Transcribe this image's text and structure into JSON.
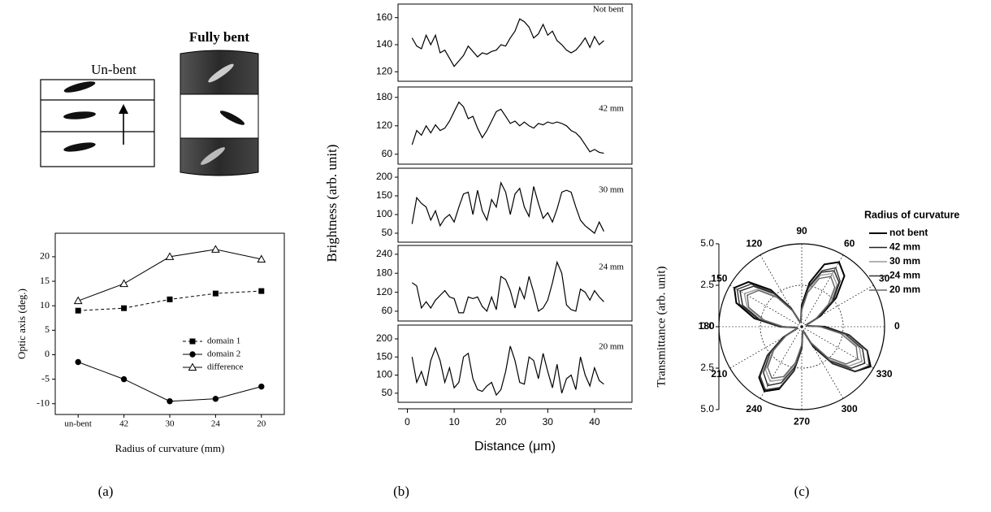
{
  "panels": [
    "(a)",
    "(b)",
    "(c)"
  ],
  "diagram": {
    "unbent_label": "Un-bent",
    "bent_label": "Fully bent"
  },
  "chart_data": [
    {
      "type": "line",
      "xlabel": "Radius of curvature (mm)",
      "ylabel": "Optic axis (deg.)",
      "categories": [
        "un-bent",
        "42",
        "30",
        "24",
        "20"
      ],
      "ylim": [
        -12.2,
        24.8
      ],
      "yticks": [
        -10,
        -5,
        0,
        5,
        10,
        15,
        20
      ],
      "legend": "lower right",
      "series": [
        {
          "name": "domain 1",
          "color": "#000000",
          "marker": "square",
          "dash": true,
          "values": [
            9,
            9.5,
            11.3,
            12.5,
            13
          ]
        },
        {
          "name": "domain 2",
          "color": "#000000",
          "marker": "circle",
          "dash": false,
          "values": [
            -1.5,
            -5,
            -9.5,
            -9,
            -6.5
          ]
        },
        {
          "name": "difference",
          "color": "#000000",
          "marker": "triangle",
          "dash": false,
          "values": [
            11,
            14.5,
            20,
            21.5,
            19.5
          ]
        }
      ]
    },
    {
      "type": "line",
      "annotation": "Not bent",
      "color": "#000000",
      "xlim": [
        -2,
        48
      ],
      "ylim": [
        113,
        170
      ],
      "yticks": [
        120,
        140,
        160
      ],
      "x": [
        1,
        2,
        3,
        4,
        5,
        6,
        7,
        8,
        9,
        10,
        11,
        12,
        13,
        14,
        15,
        16,
        17,
        18,
        19,
        20,
        21,
        22,
        23,
        24,
        25,
        26,
        27,
        28,
        29,
        30,
        31,
        32,
        33,
        34,
        35,
        36,
        37,
        38,
        39,
        40,
        41,
        42
      ],
      "values": [
        145,
        139,
        137,
        147,
        140,
        147,
        134,
        136,
        130,
        124,
        128,
        132,
        139,
        135,
        131,
        134,
        133,
        135,
        136,
        140,
        139,
        145,
        150,
        159,
        157,
        153,
        145,
        148,
        155,
        147,
        150,
        143,
        140,
        136,
        134,
        136,
        140,
        145,
        138,
        146,
        140,
        143
      ]
    },
    {
      "type": "line",
      "annotation": "42 mm",
      "color": "#000000",
      "xlim": [
        -2,
        48
      ],
      "ylim": [
        39,
        202
      ],
      "yticks": [
        60,
        120,
        180
      ],
      "x": [
        1,
        2,
        3,
        4,
        5,
        6,
        7,
        8,
        9,
        10,
        11,
        12,
        13,
        14,
        15,
        16,
        17,
        18,
        19,
        20,
        21,
        22,
        23,
        24,
        25,
        26,
        27,
        28,
        29,
        30,
        31,
        32,
        33,
        34,
        35,
        36,
        37,
        38,
        39,
        40,
        41,
        42
      ],
      "values": [
        80,
        110,
        100,
        120,
        105,
        122,
        110,
        115,
        130,
        150,
        170,
        160,
        135,
        140,
        115,
        95,
        110,
        130,
        150,
        155,
        140,
        125,
        130,
        120,
        128,
        120,
        115,
        125,
        122,
        128,
        125,
        128,
        125,
        120,
        110,
        105,
        95,
        80,
        65,
        70,
        64,
        62
      ]
    },
    {
      "type": "line",
      "annotation": "30 mm",
      "ylabel": "Brightness (arb. unit)",
      "color": "#000000",
      "xlim": [
        -2,
        48
      ],
      "ylim": [
        26,
        224
      ],
      "yticks": [
        50,
        100,
        150,
        200
      ],
      "x": [
        1,
        2,
        3,
        4,
        5,
        6,
        7,
        8,
        9,
        10,
        11,
        12,
        13,
        14,
        15,
        16,
        17,
        18,
        19,
        20,
        21,
        22,
        23,
        24,
        25,
        26,
        27,
        28,
        29,
        30,
        31,
        32,
        33,
        34,
        35,
        36,
        37,
        38,
        39,
        40,
        41,
        42
      ],
      "values": [
        75,
        145,
        130,
        120,
        85,
        110,
        70,
        90,
        100,
        80,
        120,
        155,
        160,
        100,
        165,
        110,
        85,
        140,
        120,
        185,
        160,
        100,
        155,
        170,
        120,
        95,
        175,
        130,
        90,
        105,
        80,
        115,
        160,
        165,
        160,
        120,
        85,
        70,
        60,
        50,
        80,
        55
      ]
    },
    {
      "type": "line",
      "annotation": "24 mm",
      "color": "#000000",
      "xlim": [
        -2,
        48
      ],
      "ylim": [
        29,
        268
      ],
      "yticks": [
        60,
        120,
        180,
        240
      ],
      "x": [
        1,
        2,
        3,
        4,
        5,
        6,
        7,
        8,
        9,
        10,
        11,
        12,
        13,
        14,
        15,
        16,
        17,
        18,
        19,
        20,
        21,
        22,
        23,
        24,
        25,
        26,
        27,
        28,
        29,
        30,
        31,
        32,
        33,
        34,
        35,
        36,
        37,
        38,
        39,
        40,
        41,
        42
      ],
      "values": [
        150,
        140,
        70,
        90,
        70,
        95,
        110,
        125,
        105,
        100,
        55,
        55,
        105,
        100,
        105,
        75,
        60,
        105,
        65,
        170,
        160,
        125,
        70,
        135,
        100,
        170,
        120,
        60,
        70,
        95,
        150,
        215,
        180,
        80,
        65,
        60,
        130,
        120,
        95,
        125,
        105,
        90
      ]
    },
    {
      "type": "line",
      "annotation": "20 mm",
      "xlabel": "Distance (μm)",
      "color": "#000000",
      "xlim": [
        -2,
        48
      ],
      "xticks": [
        0,
        10,
        20,
        30,
        40
      ],
      "ylim": [
        25,
        238
      ],
      "yticks": [
        50,
        100,
        150,
        200
      ],
      "x": [
        1,
        2,
        3,
        4,
        5,
        6,
        7,
        8,
        9,
        10,
        11,
        12,
        13,
        14,
        15,
        16,
        17,
        18,
        19,
        20,
        21,
        22,
        23,
        24,
        25,
        26,
        27,
        28,
        29,
        30,
        31,
        32,
        33,
        34,
        35,
        36,
        37,
        38,
        39,
        40,
        41,
        42
      ],
      "values": [
        150,
        80,
        110,
        70,
        140,
        175,
        140,
        80,
        120,
        65,
        80,
        150,
        160,
        90,
        60,
        55,
        70,
        80,
        45,
        60,
        110,
        180,
        140,
        80,
        75,
        150,
        140,
        90,
        160,
        110,
        65,
        130,
        50,
        90,
        100,
        60,
        150,
        100,
        70,
        120,
        85,
        75
      ]
    },
    {
      "type": "polar",
      "ylabel": "Transmittance (arb. unit)",
      "legend_title": "Radius of curvature",
      "ylim": [
        -5,
        5
      ],
      "yticks": [
        {
          "value": 5,
          "label": "5.0"
        },
        2.5,
        {
          "value": 0,
          "label": "0.0"
        },
        {
          "value": -2.5,
          "label": "2.5"
        },
        {
          "value": -5,
          "label": "5.0"
        }
      ],
      "thetaticks": [
        0,
        30,
        60,
        90,
        120,
        150,
        180,
        210,
        240,
        270,
        300,
        330
      ],
      "theta": [
        0,
        10,
        20,
        30,
        40,
        50,
        60,
        70,
        80,
        90,
        100,
        110,
        120,
        130,
        140,
        150,
        160,
        170,
        180,
        190,
        200,
        210,
        220,
        230,
        240,
        250,
        260,
        270,
        280,
        290,
        300,
        310,
        320,
        330,
        340,
        350
      ],
      "series": [
        {
          "name": "not bent",
          "color": "#000000",
          "values": [
            1.4,
            0.3,
            0.3,
            1.3,
            2.7,
            4.0,
            4.5,
            4.0,
            2.7,
            1.3,
            0.3,
            0.3,
            1.3,
            2.9,
            4.2,
            4.7,
            4.2,
            2.9,
            1.3,
            0.3,
            0.3,
            1.3,
            2.7,
            4.0,
            4.5,
            4.0,
            2.7,
            1.3,
            0.3,
            0.3,
            1.4,
            2.9,
            4.2,
            4.8,
            4.2,
            2.9
          ]
        },
        {
          "name": "42 mm",
          "color": "#222222",
          "values": [
            1.3,
            0.3,
            0.3,
            1.1,
            2.4,
            3.5,
            3.9,
            3.5,
            2.4,
            1.1,
            0.3,
            0.3,
            1.2,
            2.6,
            3.8,
            4.3,
            3.8,
            2.6,
            1.2,
            0.3,
            0.3,
            1.2,
            2.5,
            3.6,
            4.1,
            3.6,
            2.5,
            1.2,
            0.3,
            0.3,
            1.3,
            2.7,
            3.9,
            4.4,
            3.9,
            2.7
          ]
        },
        {
          "name": "30 mm",
          "color": "#999999",
          "values": [
            1.2,
            0.3,
            0.3,
            1.1,
            2.3,
            3.3,
            3.7,
            3.3,
            2.3,
            1.1,
            0.3,
            0.3,
            1.2,
            2.4,
            3.5,
            4.0,
            3.5,
            2.4,
            1.2,
            0.3,
            0.3,
            1.1,
            2.3,
            3.4,
            3.8,
            3.4,
            2.3,
            1.1,
            0.3,
            0.3,
            1.2,
            2.6,
            3.7,
            4.2,
            3.7,
            2.6
          ]
        },
        {
          "name": "24 mm",
          "color": "#333333",
          "values": [
            1.3,
            0.3,
            0.3,
            1.2,
            2.5,
            3.6,
            4.1,
            3.6,
            2.5,
            1.2,
            0.3,
            0.3,
            1.3,
            2.7,
            4.0,
            4.5,
            4.0,
            2.7,
            1.3,
            0.3,
            0.3,
            1.3,
            2.7,
            3.9,
            4.4,
            3.9,
            2.7,
            1.3,
            0.3,
            0.3,
            1.3,
            2.9,
            4.2,
            4.7,
            4.2,
            2.9
          ]
        },
        {
          "name": "20 mm",
          "color": "#666666",
          "values": [
            1.1,
            0.3,
            0.3,
            1.0,
            2.1,
            3.1,
            3.5,
            3.1,
            2.1,
            1.0,
            0.3,
            0.3,
            1.1,
            2.3,
            3.4,
            3.8,
            3.4,
            2.3,
            1.1,
            0.3,
            0.3,
            1.1,
            2.2,
            3.2,
            3.6,
            3.2,
            2.2,
            1.1,
            0.3,
            0.3,
            1.1,
            2.4,
            3.5,
            3.9,
            3.5,
            2.4
          ]
        }
      ]
    }
  ]
}
